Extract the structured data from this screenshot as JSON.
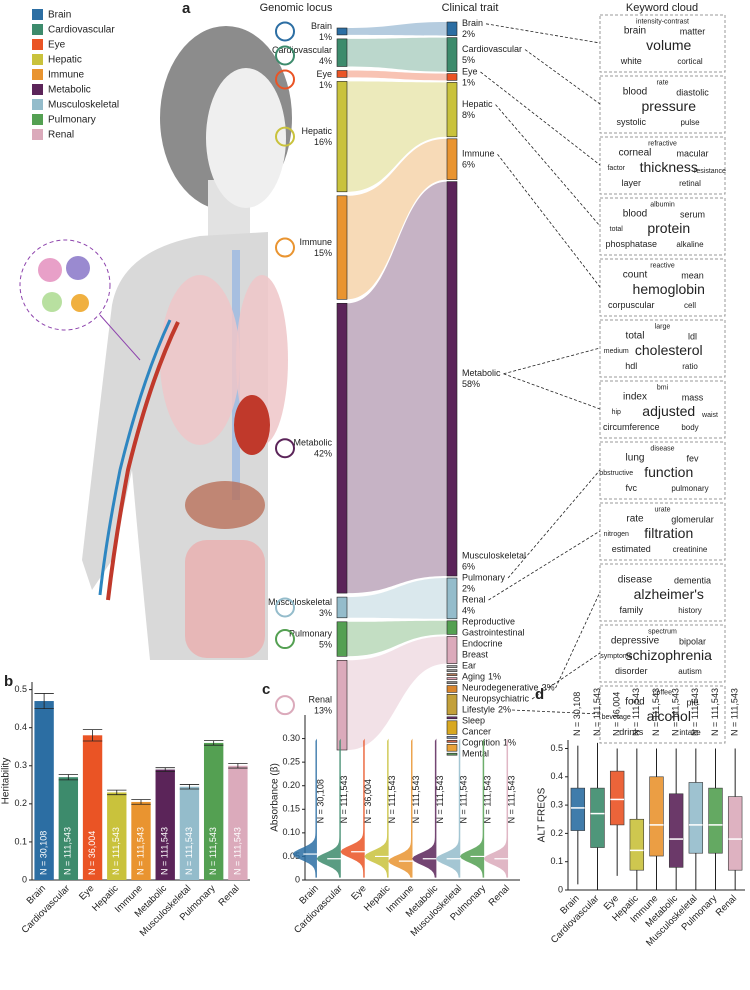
{
  "legend": {
    "items": [
      {
        "name": "Brain",
        "color": "#2c6ea3"
      },
      {
        "name": "Cardiovascular",
        "color": "#3d8b6c"
      },
      {
        "name": "Eye",
        "color": "#ea5425"
      },
      {
        "name": "Hepatic",
        "color": "#c9c23c"
      },
      {
        "name": "Immune",
        "color": "#e99430"
      },
      {
        "name": "Metabolic",
        "color": "#5b2459"
      },
      {
        "name": "Musculoskeletal",
        "color": "#94bccb"
      },
      {
        "name": "Pulmonary",
        "color": "#54a052"
      },
      {
        "name": "Renal",
        "color": "#dbaabb"
      }
    ]
  },
  "panel_a": {
    "label": "a",
    "headers": [
      "Genomic locus",
      "Clinical trait",
      "Keyword cloud"
    ],
    "loci": [
      {
        "name": "Brain",
        "value": 1,
        "label": "1%",
        "color": "#2c6ea3"
      },
      {
        "name": "Cardiovascular",
        "value": 4,
        "label": "4%",
        "color": "#3d8b6c"
      },
      {
        "name": "Eye",
        "value": 1,
        "label": "1%",
        "color": "#ea5425"
      },
      {
        "name": "Hepatic",
        "value": 16,
        "label": "16%",
        "color": "#c9c23c"
      },
      {
        "name": "Immune",
        "value": 15,
        "label": "15%",
        "color": "#e99430"
      },
      {
        "name": "Metabolic",
        "value": 42,
        "label": "42%",
        "color": "#5b2459"
      },
      {
        "name": "Musculoskeletal",
        "value": 3,
        "label": "3%",
        "color": "#94bccb"
      },
      {
        "name": "Pulmonary",
        "value": 5,
        "label": "5%",
        "color": "#54a052"
      },
      {
        "name": "Renal",
        "value": 13,
        "label": "13%",
        "color": "#dbaabb"
      }
    ],
    "traits": [
      {
        "name": "Brain",
        "value": 2,
        "label": "2%",
        "color": "#2c6ea3"
      },
      {
        "name": "Cardiovascular",
        "value": 5,
        "label": "5%",
        "color": "#3d8b6c"
      },
      {
        "name": "Eye",
        "value": 1,
        "label": "1%",
        "color": "#ea5425"
      },
      {
        "name": "Hepatic",
        "value": 8,
        "label": "8%",
        "color": "#c9c23c"
      },
      {
        "name": "Immune",
        "value": 6,
        "label": "6%",
        "color": "#e99430"
      },
      {
        "name": "Metabolic",
        "value": 58,
        "label": "58%",
        "color": "#5b2459"
      },
      {
        "name": "Musculoskeletal",
        "value": 6,
        "label": "6%",
        "color": "#94bccb"
      },
      {
        "name": "Pulmonary",
        "value": 2,
        "label": "2%",
        "color": "#54a052"
      },
      {
        "name": "Renal",
        "value": 4,
        "label": "4%",
        "color": "#dbaabb"
      },
      {
        "name": "Reproductive",
        "color": "#aaaaaa"
      },
      {
        "name": "Gastrointestinal",
        "color": "#999999"
      },
      {
        "name": "Endocrine",
        "color": "#b07a5a"
      },
      {
        "name": "Breast",
        "color": "#e3a5b5"
      },
      {
        "name": "Ear",
        "color": "#888888"
      },
      {
        "name": "Aging",
        "value": 1,
        "label": "1%",
        "color": "#d9862e"
      },
      {
        "name": "Neurodegenerative",
        "value": 3,
        "label": "3%",
        "color": "#c3a03a"
      },
      {
        "name": "Neuropsychiatric",
        "color": "#6b2f70"
      },
      {
        "name": "Lifestyle",
        "value": 2,
        "label": "2%",
        "color": "#d8a822"
      },
      {
        "name": "Sleep",
        "color": "#8090b0"
      },
      {
        "name": "Cancer",
        "color": "#d46a4a"
      },
      {
        "name": "Cognition",
        "value": 1,
        "label": "1%",
        "color": "#e9a33a"
      },
      {
        "name": "Mental",
        "color": "#5f9a5f"
      }
    ],
    "keyword_clouds": [
      {
        "words": [
          "volume",
          "brain",
          "matter",
          "white",
          "cortical",
          "intensity-contrast"
        ]
      },
      {
        "words": [
          "pressure",
          "blood",
          "diastolic",
          "systolic",
          "pulse",
          "rate"
        ]
      },
      {
        "words": [
          "thickness",
          "corneal",
          "macular",
          "layer",
          "retinal",
          "refractive",
          "factor",
          "resistance"
        ]
      },
      {
        "words": [
          "protein",
          "blood",
          "serum",
          "phosphatase",
          "alkaline",
          "albumin",
          "total"
        ]
      },
      {
        "words": [
          "hemoglobin",
          "count",
          "mean",
          "corpuscular",
          "cell",
          "reactive"
        ]
      },
      {
        "words": [
          "cholesterol",
          "total",
          "ldl",
          "hdl",
          "ratio",
          "large",
          "medium"
        ]
      },
      {
        "words": [
          "adjusted",
          "index",
          "mass",
          "circumference",
          "body",
          "bmi",
          "hip",
          "waist"
        ]
      },
      {
        "words": [
          "function",
          "lung",
          "fev",
          "fvc",
          "pulmonary",
          "disease",
          "obstructive"
        ]
      },
      {
        "words": [
          "filtration",
          "rate",
          "glomerular",
          "estimated",
          "creatinine",
          "urate",
          "nitrogen"
        ]
      },
      {
        "words": [
          "alzheimer's",
          "disease",
          "dementia",
          "family",
          "history"
        ]
      },
      {
        "words": [
          "schizophrenia",
          "depressive",
          "bipolar",
          "disorder",
          "autism",
          "spectrum",
          "symptoms"
        ]
      },
      {
        "words": [
          "alcohol",
          "food",
          "pie",
          "drinks",
          "intake",
          "coffee",
          "beverage"
        ]
      }
    ]
  },
  "chart_data": [
    {
      "panel_label": "b",
      "type": "bar",
      "y_label": "Heritability",
      "categories": [
        "Brain",
        "Cardiovascular",
        "Eye",
        "Hepatic",
        "Immune",
        "Metabolic",
        "Musculoskeletal",
        "Pulmonary",
        "Renal"
      ],
      "values": [
        0.47,
        0.27,
        0.38,
        0.23,
        0.205,
        0.29,
        0.245,
        0.36,
        0.3
      ],
      "errors": [
        0.02,
        0.007,
        0.015,
        0.006,
        0.006,
        0.005,
        0.006,
        0.006,
        0.006
      ],
      "n_labels": [
        "N = 30,108",
        "N = 111,543",
        "N = 36,004",
        "N = 111,543",
        "N = 111,543",
        "N = 111,543",
        "N = 111,543",
        "N = 111,543",
        "N = 111,543"
      ],
      "colors": [
        "#2c6ea3",
        "#3d8b6c",
        "#ea5425",
        "#c9c23c",
        "#e99430",
        "#5b2459",
        "#94bccb",
        "#54a052",
        "#dbaabb"
      ],
      "ylim": [
        0,
        0.52
      ],
      "yticks": [
        0,
        0.1,
        0.2,
        0.3,
        0.4,
        0.5
      ]
    },
    {
      "panel_label": "c",
      "type": "violin",
      "y_label": "Absorbance (β)",
      "categories": [
        "Brain",
        "Cardiovascular",
        "Eye",
        "Hepatic",
        "Immune",
        "Metabolic",
        "Musculoskeletal",
        "Pulmonary",
        "Renal"
      ],
      "values": [
        0.055,
        0.045,
        0.06,
        0.05,
        0.04,
        0.045,
        0.045,
        0.05,
        0.045
      ],
      "n_labels": [
        "N = 30,108",
        "N = 111,543",
        "N = 36,004",
        "N = 111,543",
        "N = 111,543",
        "N = 111,543",
        "N = 111,543",
        "N = 111,543",
        "N = 111,543"
      ],
      "colors": [
        "#2c6ea3",
        "#3d8b6c",
        "#ea5425",
        "#c9c23c",
        "#e99430",
        "#5b2459",
        "#94bccb",
        "#54a052",
        "#dbaabb"
      ],
      "ylim": [
        0,
        0.35
      ],
      "yticks": [
        0,
        0.05,
        {
          "value": 0.1,
          "label": "0.10"
        },
        0.15,
        {
          "value": 0.2,
          "label": "0.20"
        },
        0.25,
        {
          "value": 0.3,
          "label": "0.30"
        }
      ]
    },
    {
      "panel_label": "d",
      "type": "box",
      "y_label": "ALT FREQS",
      "categories": [
        "Brain",
        "Cardiovascular",
        "Eye",
        "Hepatic",
        "Immune",
        "Metabolic",
        "Musculoskeletal",
        "Pulmonary",
        "Renal"
      ],
      "boxes": [
        {
          "whisker_low": 0.02,
          "q1": 0.21,
          "median": 0.29,
          "q3": 0.36,
          "whisker_high": 0.51
        },
        {
          "whisker_low": 0,
          "q1": 0.15,
          "median": 0.27,
          "q3": 0.36,
          "whisker_high": 0.52
        },
        {
          "whisker_low": 0.05,
          "q1": 0.23,
          "median": 0.32,
          "q3": 0.42,
          "whisker_high": 0.5
        },
        {
          "whisker_low": 0,
          "q1": 0.07,
          "median": 0.14,
          "q3": 0.25,
          "whisker_high": 0.5
        },
        {
          "whisker_low": 0,
          "q1": 0.12,
          "median": 0.23,
          "q3": 0.4,
          "whisker_high": 0.5
        },
        {
          "whisker_low": 0,
          "q1": 0.08,
          "median": 0.18,
          "q3": 0.34,
          "whisker_high": 0.5
        },
        {
          "whisker_low": 0,
          "q1": 0.13,
          "median": 0.23,
          "q3": 0.38,
          "whisker_high": 0.5
        },
        {
          "whisker_low": 0,
          "q1": 0.13,
          "median": 0.23,
          "q3": 0.36,
          "whisker_high": 0.5
        },
        {
          "whisker_low": 0,
          "q1": 0.07,
          "median": 0.18,
          "q3": 0.33,
          "whisker_high": 0.5
        }
      ],
      "n_labels": [
        "N = 30,108",
        "N = 111,543",
        "N = 36,004",
        "N = 111,543",
        "N = 111,543",
        "N = 111,543",
        "N = 111,543",
        "N = 111,543",
        "N = 111,543"
      ],
      "colors": [
        "#2c6ea3",
        "#3d8b6c",
        "#ea5425",
        "#c9c23c",
        "#e99430",
        "#5b2459",
        "#94bccb",
        "#54a052",
        "#dbaabb"
      ],
      "ylim": [
        0,
        0.53
      ],
      "yticks": [
        0,
        0.1,
        0.2,
        0.3,
        0.4,
        0.5
      ]
    }
  ]
}
